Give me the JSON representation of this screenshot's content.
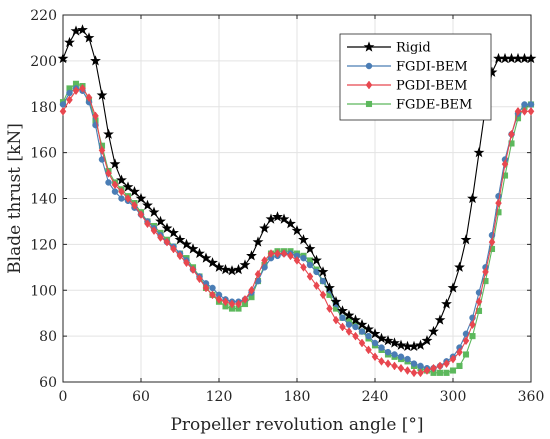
{
  "chart_data": {
    "type": "line",
    "title": "",
    "xlabel": "Propeller revolution angle [°]",
    "ylabel": "Blade thrust [kN]",
    "xlim": [
      0,
      360
    ],
    "ylim": [
      60,
      220
    ],
    "xticks": [
      0,
      60,
      120,
      180,
      240,
      300,
      360
    ],
    "yticks": [
      60,
      80,
      100,
      120,
      140,
      160,
      180,
      200,
      220
    ],
    "grid": true,
    "legend": "top-right",
    "x": [
      0,
      5,
      10,
      15,
      20,
      25,
      30,
      35,
      40,
      45,
      50,
      55,
      60,
      65,
      70,
      75,
      80,
      85,
      90,
      95,
      100,
      105,
      110,
      115,
      120,
      125,
      130,
      135,
      140,
      145,
      150,
      155,
      160,
      165,
      170,
      175,
      180,
      185,
      190,
      195,
      200,
      205,
      210,
      215,
      220,
      225,
      230,
      235,
      240,
      245,
      250,
      255,
      260,
      265,
      270,
      275,
      280,
      285,
      290,
      295,
      300,
      305,
      310,
      315,
      320,
      325,
      330,
      335,
      340,
      345,
      350,
      355,
      360
    ],
    "series": [
      {
        "name": "Rigid",
        "color": "#000000",
        "marker": "star",
        "values": [
          201,
          208,
          213,
          213.5,
          210,
          200,
          185,
          168,
          155,
          148,
          145,
          143,
          140,
          137,
          134,
          130,
          127,
          125,
          122,
          120,
          118,
          116,
          114,
          112,
          110,
          109,
          108.5,
          109,
          111,
          115,
          121,
          127,
          131,
          132,
          131,
          129,
          126,
          122,
          118,
          113,
          108,
          101,
          95,
          91,
          89,
          87,
          85,
          83,
          81,
          79,
          78,
          77,
          76,
          75.5,
          75.5,
          76,
          78,
          82,
          87,
          94,
          101,
          110,
          122,
          140,
          160,
          180,
          195,
          201,
          201,
          201,
          201,
          201,
          201
        ]
      },
      {
        "name": "FGDI-BEM",
        "color": "#4a7db5",
        "marker": "circle",
        "values": [
          181,
          186,
          188,
          187,
          182,
          172,
          157,
          147,
          143,
          140,
          139,
          136,
          133,
          130,
          127,
          124,
          121,
          119,
          116,
          113,
          109,
          106,
          103,
          101,
          98,
          96,
          95,
          95,
          96,
          99,
          104,
          110,
          114,
          115,
          116,
          116,
          115,
          114,
          111,
          108,
          104,
          100,
          94,
          88,
          85,
          84,
          82,
          80,
          77,
          75,
          73,
          72,
          71,
          70,
          68,
          67,
          66,
          66,
          67,
          69,
          71,
          75,
          81,
          88,
          99,
          110,
          124,
          141,
          157,
          168,
          177,
          181,
          181
        ]
      },
      {
        "name": "PGDI-BEM",
        "color": "#e8474f",
        "marker": "diamond",
        "values": [
          178,
          183,
          187,
          188,
          184,
          176,
          161,
          151,
          146,
          143,
          140,
          137,
          133,
          129,
          126,
          123,
          121,
          118,
          115,
          112,
          109,
          105,
          101,
          98,
          96,
          95,
          94,
          94,
          96,
          100,
          107,
          113,
          116,
          116,
          116,
          115,
          113,
          110,
          106,
          102,
          98,
          92,
          87,
          84,
          82,
          80,
          77,
          74,
          71,
          69,
          68,
          67,
          66,
          65,
          64,
          64,
          65,
          66,
          67,
          68,
          70,
          73,
          78,
          85,
          95,
          108,
          121,
          138,
          155,
          168,
          178,
          178,
          178
        ]
      },
      {
        "name": "FGDE-BEM",
        "color": "#5cb85c",
        "marker": "square",
        "values": [
          182,
          188,
          190,
          189,
          183,
          174,
          163,
          152,
          147,
          144,
          141,
          138,
          134,
          130,
          128,
          125,
          122,
          119,
          116,
          114,
          110,
          106,
          101,
          98,
          95,
          93,
          92,
          92,
          94,
          97,
          104,
          111,
          116,
          117,
          117,
          117,
          116,
          115,
          113,
          109,
          104,
          98,
          92,
          88,
          87,
          85,
          82,
          79,
          76,
          74,
          72,
          71,
          70,
          69,
          67,
          66,
          65,
          64,
          64,
          64,
          65,
          67,
          72,
          80,
          91,
          104,
          118,
          134,
          150,
          164,
          175,
          180,
          181
        ]
      }
    ]
  }
}
